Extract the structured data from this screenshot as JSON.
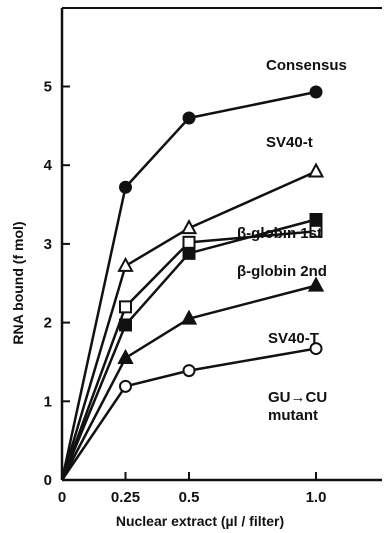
{
  "chart_data": {
    "type": "line",
    "title": "",
    "xlabel": "Nuclear extract (µl / filter)",
    "ylabel": "RNA bound (f mol)",
    "xlim": [
      0,
      1.2
    ],
    "ylim": [
      0,
      6
    ],
    "x_ticks": [
      0,
      0.25,
      0.5,
      1.0
    ],
    "x_tick_labels": [
      "0",
      "0.25",
      "0.5",
      "1.0"
    ],
    "y_ticks": [
      0,
      1,
      2,
      3,
      4,
      5
    ],
    "y_tick_labels": [
      "0",
      "1",
      "2",
      "3",
      "4",
      "5"
    ],
    "grid": false,
    "legend": "inline labels at right end of each line",
    "series": [
      {
        "name": "Consensus",
        "marker": "filled-circle",
        "x": [
          0,
          0.25,
          0.5,
          1.0
        ],
        "values": [
          0,
          3.72,
          4.6,
          4.93
        ]
      },
      {
        "name": "SV40-t",
        "marker": "open-triangle",
        "x": [
          0,
          0.25,
          0.5,
          1.0
        ],
        "values": [
          0,
          2.72,
          3.2,
          3.92
        ]
      },
      {
        "name": "β-globin 1st",
        "marker": "filled-square",
        "x": [
          0,
          0.25,
          0.5,
          1.0
        ],
        "values": [
          0,
          1.97,
          2.88,
          3.31
        ]
      },
      {
        "name": "β-globin 2nd",
        "marker": "open-square",
        "x": [
          0,
          0.25,
          0.5,
          1.0
        ],
        "values": [
          0,
          2.2,
          3.02,
          3.16
        ]
      },
      {
        "name": "SV40-T",
        "marker": "filled-triangle",
        "x": [
          0,
          0.25,
          0.5,
          1.0
        ],
        "values": [
          0,
          1.55,
          2.05,
          2.47
        ]
      },
      {
        "name": "GU→CU mutant",
        "label_lines": [
          "GU→CU",
          "mutant"
        ],
        "marker": "open-circle",
        "x": [
          0,
          0.25,
          0.5,
          1.0
        ],
        "values": [
          0,
          1.19,
          1.39,
          1.67
        ]
      }
    ]
  }
}
